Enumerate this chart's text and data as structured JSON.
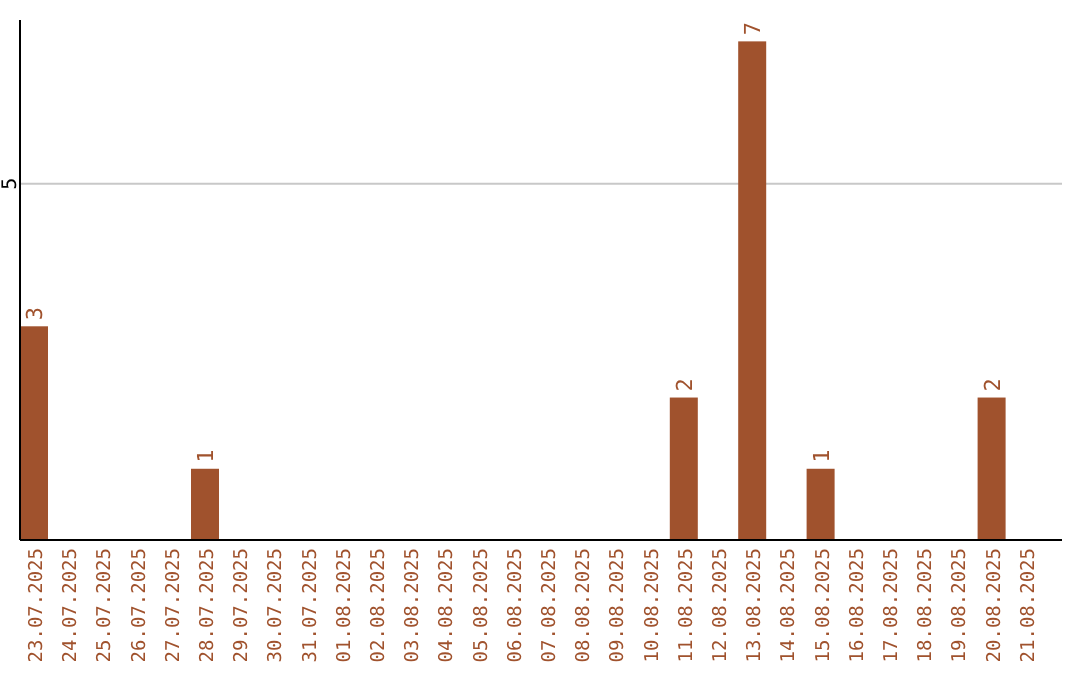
{
  "chart_data": {
    "type": "bar",
    "categories": [
      "23.07.2025",
      "24.07.2025",
      "25.07.2025",
      "26.07.2025",
      "27.07.2025",
      "28.07.2025",
      "29.07.2025",
      "30.07.2025",
      "31.07.2025",
      "01.08.2025",
      "02.08.2025",
      "03.08.2025",
      "04.08.2025",
      "05.08.2025",
      "06.08.2025",
      "07.08.2025",
      "08.08.2025",
      "09.08.2025",
      "10.08.2025",
      "11.08.2025",
      "12.08.2025",
      "13.08.2025",
      "14.08.2025",
      "15.08.2025",
      "16.08.2025",
      "17.08.2025",
      "18.08.2025",
      "19.08.2025",
      "20.08.2025",
      "21.08.2025"
    ],
    "values": [
      3,
      0,
      0,
      0,
      0,
      1,
      0,
      0,
      0,
      0,
      0,
      0,
      0,
      0,
      0,
      0,
      0,
      0,
      0,
      2,
      0,
      7,
      0,
      1,
      0,
      0,
      0,
      0,
      2,
      0
    ],
    "value_labels": [
      "3",
      null,
      null,
      null,
      null,
      "1",
      null,
      null,
      null,
      null,
      null,
      null,
      null,
      null,
      null,
      null,
      null,
      null,
      null,
      "2",
      null,
      "7",
      null,
      "1",
      null,
      null,
      null,
      null,
      "2",
      null
    ],
    "color": "#a0522d",
    "ylim": [
      0,
      7.3
    ],
    "yticks": [
      5
    ],
    "grid": "y"
  }
}
